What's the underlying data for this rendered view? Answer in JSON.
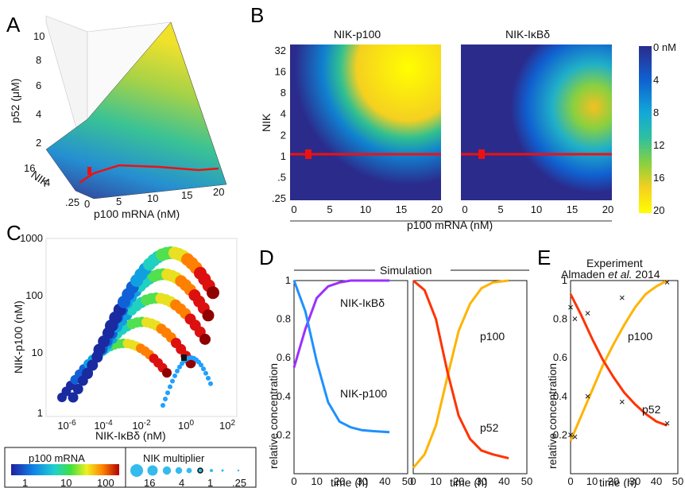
{
  "colors": {
    "p52": "#ff3300",
    "p100": "#ffb300",
    "nik_p100": "#1e90ff",
    "nik_ikbd": "#9b30ff",
    "red_line": "#ee1111",
    "colormap": [
      "#2b2b8c",
      "#1060d0",
      "#12a8d8",
      "#2ec0a0",
      "#88d040",
      "#f5d020",
      "#ffff00"
    ]
  },
  "chart_data": [
    {
      "panel": "A",
      "type": "surface",
      "zlabel": "p52 (μM)",
      "ylabel": "NIK",
      "xlabel": "p100 mRNA (nM)",
      "zticks": [
        "2",
        "4",
        "6",
        "8",
        "10"
      ],
      "yticks": [
        "16",
        "4",
        ".25"
      ],
      "xticks": [
        "0",
        "5",
        "10",
        "15",
        "20"
      ]
    },
    {
      "panel": "B",
      "type": "heatmap",
      "titles": [
        "NIK-p100",
        "NIK-IκBδ"
      ],
      "ylabel": "NIK",
      "xlabel": "p100 mRNA (nM)",
      "yticks": [
        "32",
        "16",
        "8",
        "4",
        "2",
        "1",
        ".5",
        ".25"
      ],
      "xticks": [
        "0",
        "5",
        "10",
        "15",
        "20"
      ],
      "colorbar": {
        "ticks": [
          "0 nM",
          "4",
          "8",
          "12",
          "16",
          "20"
        ],
        "range": [
          0,
          20
        ]
      },
      "red_line_nik": 1,
      "red_marker_p100": 2.5
    },
    {
      "panel": "C",
      "type": "scatter",
      "xlabel": "NIK-IκBδ (nM)",
      "ylabel": "NIK-p100 (nM)",
      "xscale": "log",
      "yscale": "log",
      "xticks": [
        "10-6",
        "10-4",
        "10-2",
        "100",
        "102"
      ],
      "yticks": [
        "1",
        "10",
        "100",
        "1000"
      ],
      "legend_color": {
        "title": "p100 mRNA",
        "ticks": [
          "1",
          "10",
          "100"
        ]
      },
      "legend_size": {
        "title": "NIK multiplier",
        "ticks": [
          "16",
          "4",
          "1",
          ".25"
        ]
      }
    },
    {
      "panel": "D",
      "type": "line",
      "group_label": "Simulation",
      "xlabel": "time (h)",
      "ylabel": "relative concentration",
      "xlim": [
        0,
        50
      ],
      "ylim": [
        0,
        1
      ],
      "xticks": [
        "0",
        "10",
        "20",
        "30",
        "40",
        "50"
      ],
      "yticks": [
        "0.2",
        "0.4",
        "0.6",
        "0.8",
        "1"
      ],
      "left": {
        "x": [
          0,
          5,
          10,
          15,
          20,
          25,
          30,
          35,
          42
        ],
        "series": [
          {
            "name": "NIK-IκBδ",
            "values": [
              0.55,
              0.75,
              0.91,
              0.97,
              0.99,
              1.0,
              1.0,
              1.0,
              1.0
            ]
          },
          {
            "name": "NIK-p100",
            "values": [
              1.0,
              0.84,
              0.58,
              0.37,
              0.27,
              0.24,
              0.225,
              0.22,
              0.215
            ]
          }
        ]
      },
      "right": {
        "x": [
          0,
          5,
          10,
          15,
          20,
          25,
          30,
          35,
          42
        ],
        "series": [
          {
            "name": "p100",
            "values": [
              0.03,
              0.1,
              0.25,
              0.5,
              0.74,
              0.88,
              0.96,
              0.99,
              1.0
            ]
          },
          {
            "name": "p52",
            "values": [
              1.0,
              0.95,
              0.8,
              0.53,
              0.3,
              0.18,
              0.12,
              0.1,
              0.08
            ]
          }
        ]
      }
    },
    {
      "panel": "E",
      "type": "line",
      "title_line1": "Experiment",
      "title_line2_a": "Almaden ",
      "title_line2_b": "et al.",
      "title_line2_c": " 2014",
      "xlabel": "time (h)",
      "ylabel": "relative concentration",
      "xlim": [
        0,
        50
      ],
      "ylim": [
        0,
        1
      ],
      "xticks": [
        "0",
        "10",
        "20",
        "30",
        "40",
        "50"
      ],
      "yticks": [
        "0.2",
        "0.4",
        "0.6",
        "0.8",
        "1"
      ],
      "fit_x": [
        0,
        5,
        10,
        15,
        20,
        25,
        30,
        35,
        40,
        45
      ],
      "series": [
        {
          "name": "p100",
          "fit": [
            0.17,
            0.3,
            0.43,
            0.56,
            0.67,
            0.77,
            0.86,
            0.93,
            0.97,
            1.0
          ],
          "points_x": [
            0,
            2,
            8,
            24,
            45
          ],
          "points_y": [
            0.2,
            0.19,
            0.4,
            0.91,
            0.99
          ]
        },
        {
          "name": "p52",
          "fit": [
            0.93,
            0.82,
            0.7,
            0.59,
            0.5,
            0.42,
            0.36,
            0.31,
            0.27,
            0.25
          ],
          "points_x": [
            0,
            2,
            8,
            24,
            45
          ],
          "points_y": [
            0.86,
            0.8,
            0.83,
            0.37,
            0.26
          ]
        }
      ]
    }
  ]
}
